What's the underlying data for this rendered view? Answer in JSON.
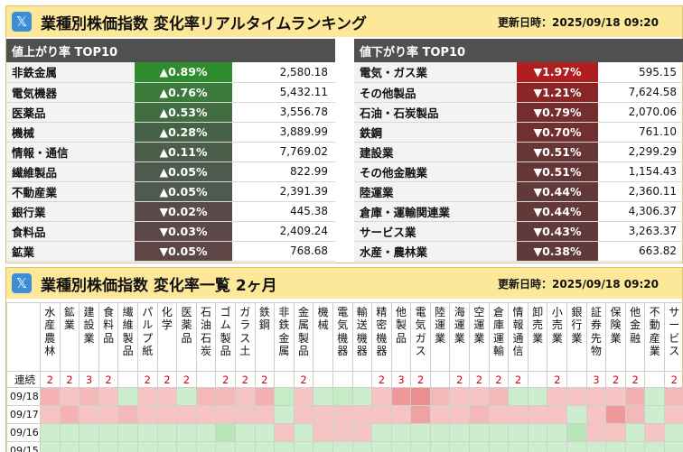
{
  "ranking_panel": {
    "title": "業種別株価指数 変化率リアルタイムランキング",
    "updated": "更新日時：2025/09/18 09:20",
    "up": {
      "header": "値上がり率 TOP10",
      "rows": [
        {
          "name": "非鉄金属",
          "change": "▲0.89%",
          "price": "2,580.18",
          "color": "#2e8b2e"
        },
        {
          "name": "電気機器",
          "change": "▲0.76%",
          "price": "5,432.11",
          "color": "#3a7a3a"
        },
        {
          "name": "医薬品",
          "change": "▲0.53%",
          "price": "3,556.78",
          "color": "#406e40"
        },
        {
          "name": "機械",
          "change": "▲0.28%",
          "price": "3,889.99",
          "color": "#466246"
        },
        {
          "name": "情報・通信",
          "change": "▲0.11%",
          "price": "7,769.02",
          "color": "#4a5e4a"
        },
        {
          "name": "繊維製品",
          "change": "▲0.05%",
          "price": "822.99",
          "color": "#4e5a4e"
        },
        {
          "name": "不動産業",
          "change": "▲0.05%",
          "price": "2,391.39",
          "color": "#4e5a4e"
        },
        {
          "name": "銀行業",
          "change": "▼0.02%",
          "price": "445.38",
          "color": "#5a4a4a"
        },
        {
          "name": "食料品",
          "change": "▼0.03%",
          "price": "2,409.24",
          "color": "#5c4848"
        },
        {
          "name": "鉱業",
          "change": "▼0.05%",
          "price": "768.68",
          "color": "#5e4646"
        }
      ]
    },
    "down": {
      "header": "値下がり率 TOP10",
      "rows": [
        {
          "name": "電気・ガス業",
          "change": "▼1.97%",
          "price": "595.15",
          "color": "#b01e1e"
        },
        {
          "name": "その他製品",
          "change": "▼1.21%",
          "price": "7,624.58",
          "color": "#8a2626"
        },
        {
          "name": "石油・石炭製品",
          "change": "▼0.79%",
          "price": "2,070.06",
          "color": "#742e2e"
        },
        {
          "name": "鉄鋼",
          "change": "▼0.70%",
          "price": "761.10",
          "color": "#703030"
        },
        {
          "name": "建設業",
          "change": "▼0.51%",
          "price": "2,299.29",
          "color": "#663636"
        },
        {
          "name": "その他金融業",
          "change": "▼0.51%",
          "price": "1,154.43",
          "color": "#663636"
        },
        {
          "name": "陸運業",
          "change": "▼0.44%",
          "price": "2,360.11",
          "color": "#633838"
        },
        {
          "name": "倉庫・運輸関連業",
          "change": "▼0.44%",
          "price": "4,306.37",
          "color": "#633838"
        },
        {
          "name": "サービス業",
          "change": "▼0.43%",
          "price": "3,263.37",
          "color": "#623939"
        },
        {
          "name": "水産・農林業",
          "change": "▼0.38%",
          "price": "663.82",
          "color": "#603a3a"
        }
      ]
    }
  },
  "heatmap_panel": {
    "title": "業種別株価指数 変化率一覧 2ヶ月",
    "updated": "更新日時：2025/09/18 09:20",
    "sectors": [
      "水産農林",
      "鉱業",
      "建設業",
      "食料品",
      "繊維製品",
      "パルプ紙",
      "化学",
      "医薬品",
      "石油石炭",
      "ゴム製品",
      "ガラス土",
      "鉄鋼",
      "非鉄金属",
      "金属製品",
      "機械",
      "電気機器",
      "輸送機器",
      "精密機器",
      "他製品",
      "電気ガス",
      "陸運業",
      "海運業",
      "空運業",
      "倉庫運輸",
      "情報通信",
      "卸売業",
      "小売業",
      "銀行業",
      "証券先物",
      "保険業",
      "他金融",
      "不動産業",
      "サービス"
    ],
    "streak_label": "連続",
    "streak": [
      "2",
      "2",
      "3",
      "2",
      "",
      "2",
      "2",
      "2",
      "",
      "2",
      "2",
      "2",
      "",
      "2",
      "",
      "",
      "",
      "2",
      "3",
      "2",
      "",
      "2",
      "2",
      "2",
      "2",
      "",
      "2",
      "",
      "3",
      "2",
      "2",
      "",
      "2"
    ],
    "days": [
      {
        "date": "09/18",
        "cells": [
          "#f5b3b3",
          "#f7c4c4",
          "#f5b8b8",
          "#f7c4c4",
          "#cdeecd",
          "#f7c4c4",
          "#f7c4c4",
          "#cdeecd",
          "#f5b8b8",
          "#f5b8b8",
          "#f7c4c4",
          "#f4b0b0",
          "#c5ecc5",
          "#f7c4c4",
          "#cdeecd",
          "#c5ecc5",
          "#cdeecd",
          "#f7c4c4",
          "#ee9a9a",
          "#eb8e8e",
          "#f5b8b8",
          "#f7c4c4",
          "#f7c4c4",
          "#f5b8b8",
          "#cdeecd",
          "#cdeecd",
          "#f7c4c4",
          "#f7c4c4",
          "#f7c4c4",
          "#f7c4c4",
          "#f4b0b0",
          "#cdeecd",
          "#f5b8b8"
        ]
      },
      {
        "date": "09/17",
        "cells": [
          "#f7c4c4",
          "#f5b3b3",
          "#f7c4c4",
          "#f7c4c4",
          "#f5b8b8",
          "#f7c4c4",
          "#f7c4c4",
          "#f7c4c4",
          "#f7c4c4",
          "#f7c4c4",
          "#f7c4c4",
          "#f7c4c4",
          "#cdeecd",
          "#f7c4c4",
          "#f7c4c4",
          "#f7c4c4",
          "#f7c4c4",
          "#f7c4c4",
          "#f7c4c4",
          "#f0a2a2",
          "#f7c4c4",
          "#f7c4c4",
          "#f5b8b8",
          "#f7c4c4",
          "#f7c4c4",
          "#f7c4c4",
          "#f7c4c4",
          "#cdeecd",
          "#f7c4c4",
          "#ee9a9a",
          "#f5b8b8",
          "#cdeecd",
          "#f7c4c4"
        ]
      },
      {
        "date": "09/16",
        "cells": [
          "#cdeecd",
          "#cdeecd",
          "#cdeecd",
          "#cdeecd",
          "#cdeecd",
          "#cdeecd",
          "#cdeecd",
          "#cdeecd",
          "#cdeecd",
          "#b8e6b8",
          "#cdeecd",
          "#cdeecd",
          "#f7c4c4",
          "#cdeecd",
          "#f7c4c4",
          "#f7c4c4",
          "#f7c4c4",
          "#cdeecd",
          "#cdeecd",
          "#cdeecd",
          "#cdeecd",
          "#cdeecd",
          "#cdeecd",
          "#cdeecd",
          "#cdeecd",
          "#cdeecd",
          "#cdeecd",
          "#b8e6b8",
          "#f7c4c4",
          "#f7c4c4",
          "#cdeecd",
          "#f7c4c4",
          "#cdeecd"
        ]
      },
      {
        "date": "09/15",
        "cells": [
          "#cdeecd",
          "#cdeecd",
          "#cdeecd",
          "#cdeecd",
          "#cdeecd",
          "#cdeecd",
          "#cdeecd",
          "#cdeecd",
          "#cdeecd",
          "#cdeecd",
          "#cdeecd",
          "#cdeecd",
          "#cdeecd",
          "#cdeecd",
          "#cdeecd",
          "#cdeecd",
          "#cdeecd",
          "#cdeecd",
          "#cdeecd",
          "#cdeecd",
          "#cdeecd",
          "#cdeecd",
          "#cdeecd",
          "#cdeecd",
          "#cdeecd",
          "#cdeecd",
          "#cdeecd",
          "#cdeecd",
          "#cdeecd",
          "#cdeecd",
          "#cdeecd",
          "#cdeecd",
          "#cdeecd"
        ]
      }
    ]
  }
}
